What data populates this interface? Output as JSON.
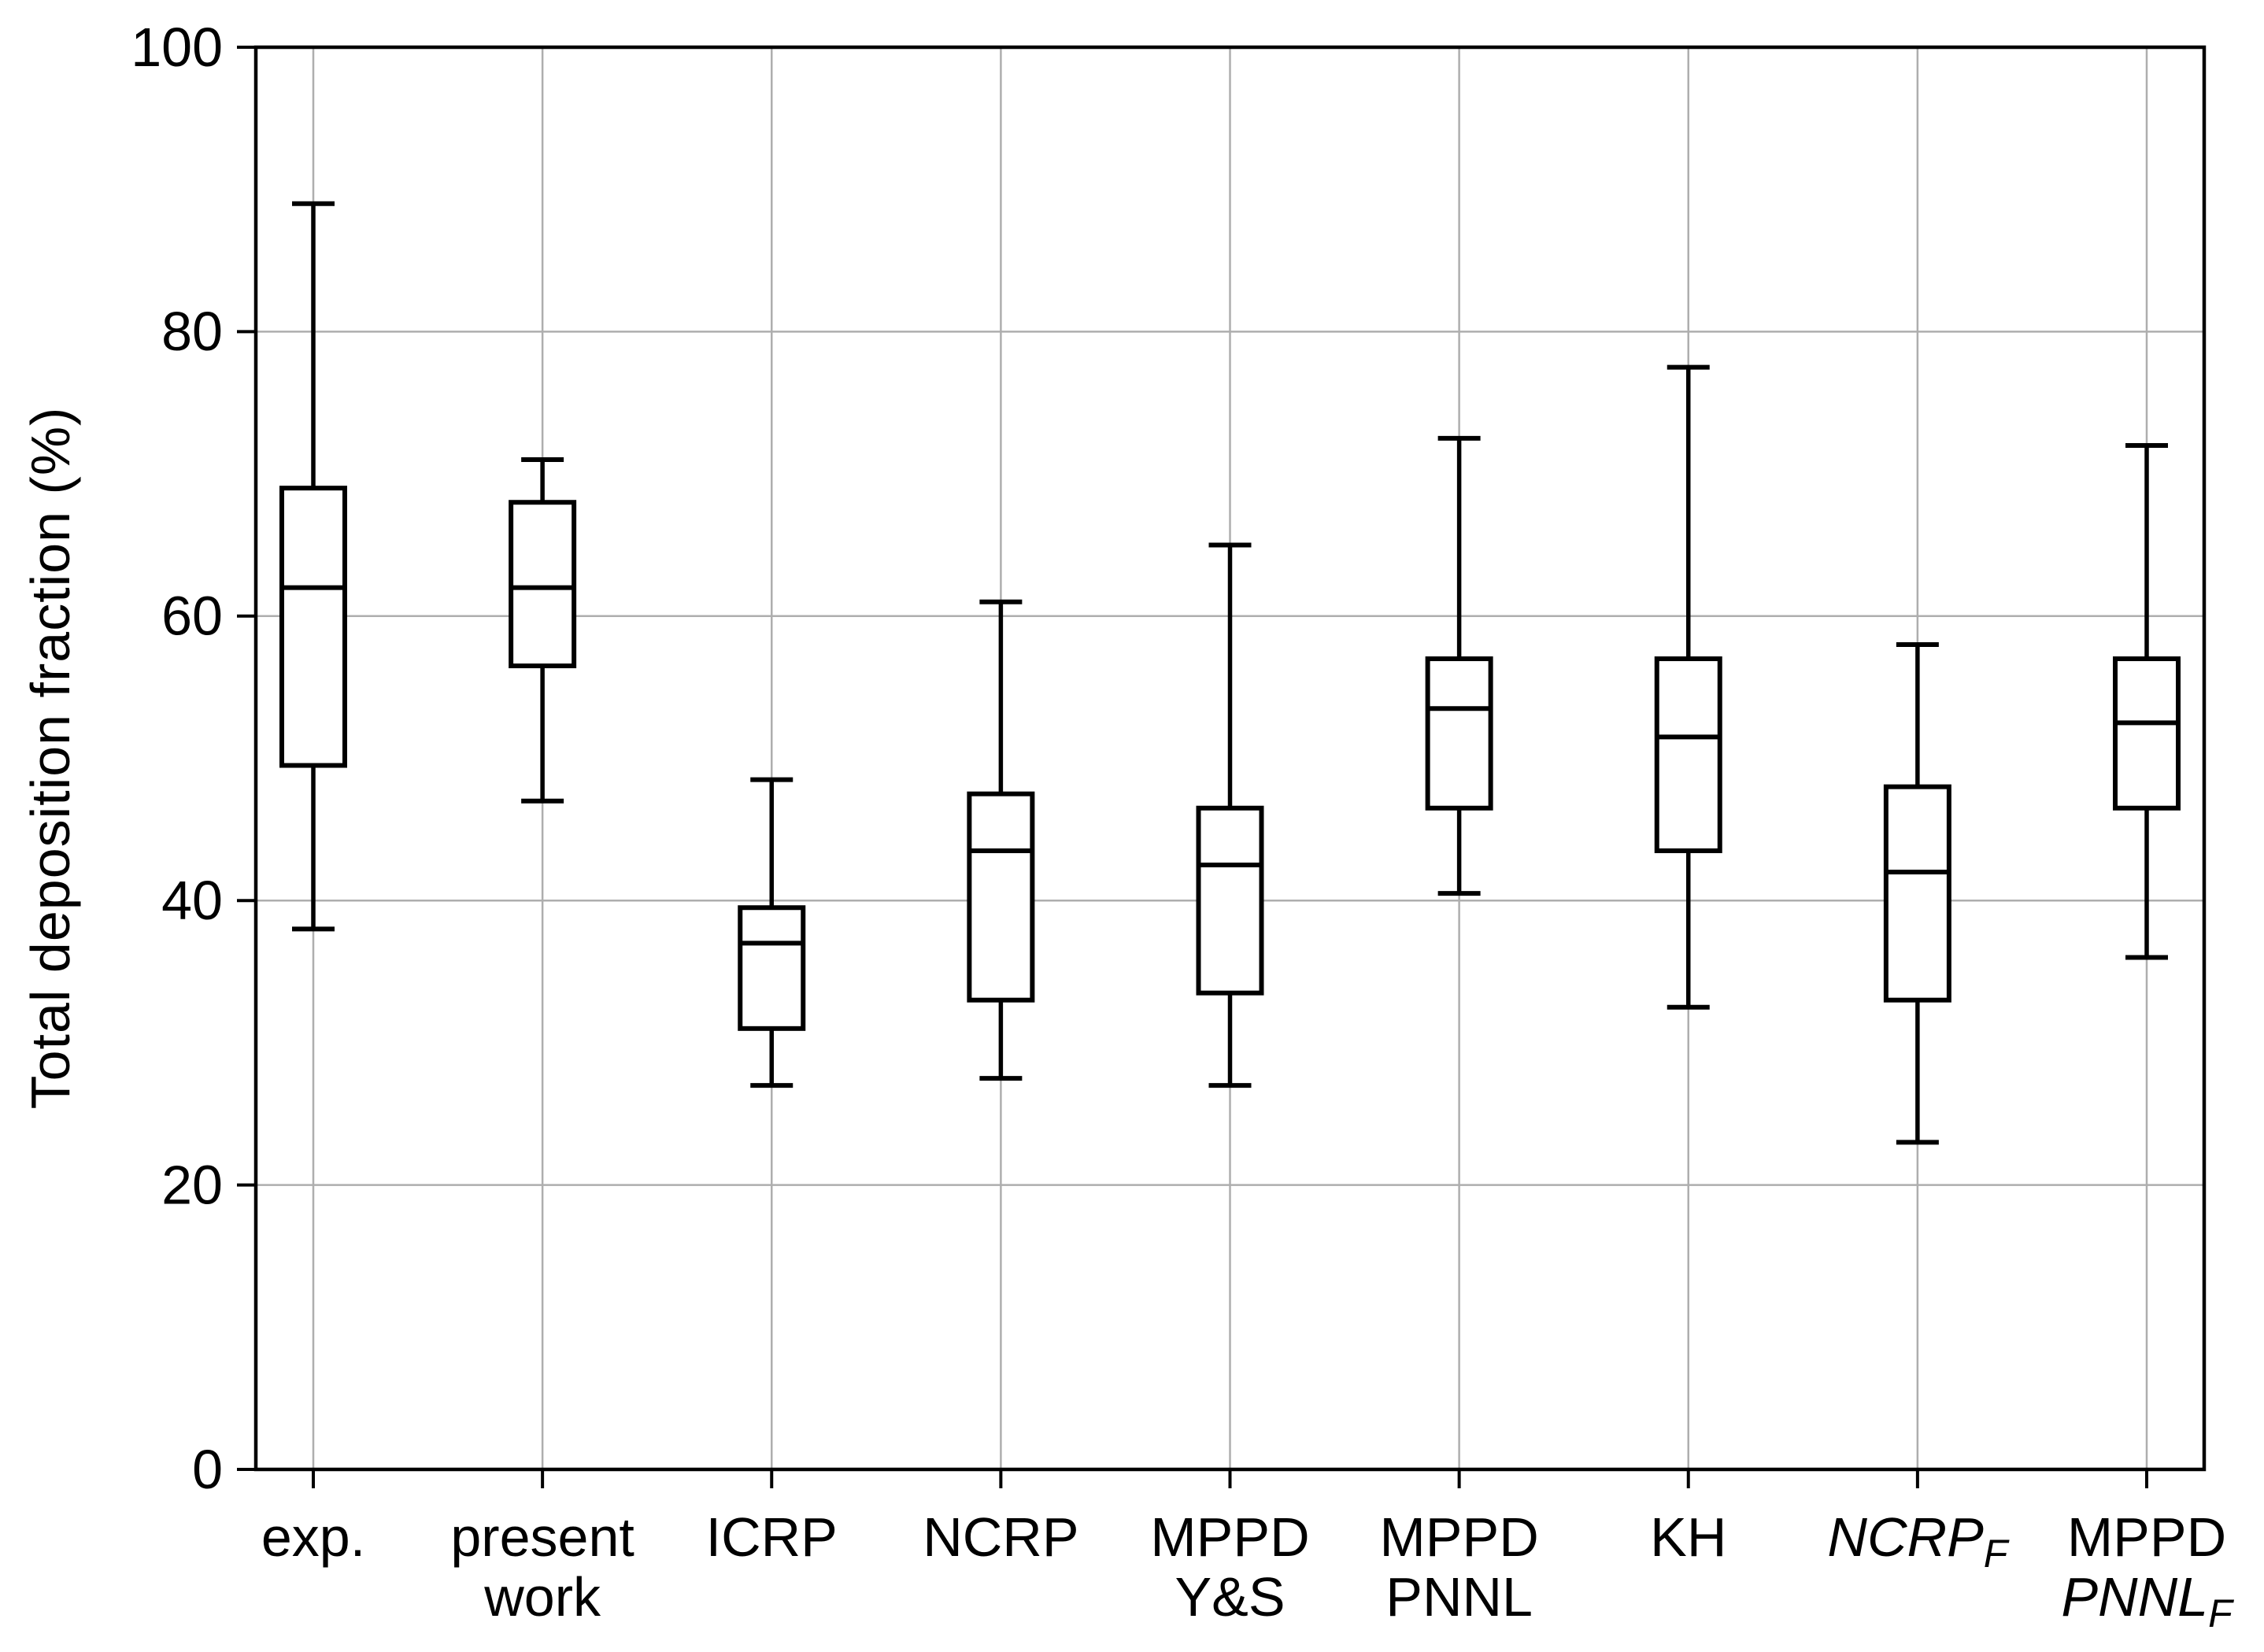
{
  "figure": {
    "background": "#ffffff"
  },
  "colors": {
    "box_stroke": "#000000",
    "axis_stroke": "#000000",
    "grid": "#aeaeae",
    "text": "#000000"
  },
  "chart_data": {
    "type": "box",
    "title": "",
    "xlabel": "",
    "ylabel": "Total deposition fraction (%)",
    "ylim": [
      0,
      100
    ],
    "yticks": [
      0,
      20,
      40,
      60,
      80,
      100
    ],
    "grid": true,
    "legend": "none",
    "orientation": "vertical",
    "categories": [
      {
        "id": "exp",
        "label": "exp.",
        "label_lines": [
          {
            "text": "exp.",
            "italic": false,
            "subscript": ""
          }
        ],
        "whisker_low": 38,
        "q1": 49.5,
        "median": 62,
        "q3": 69,
        "whisker_high": 89
      },
      {
        "id": "present-work",
        "label": "present work",
        "label_lines": [
          {
            "text": "present",
            "italic": false,
            "subscript": ""
          },
          {
            "text": "work",
            "italic": false,
            "subscript": ""
          }
        ],
        "whisker_low": 47,
        "q1": 56.5,
        "median": 62,
        "q3": 68,
        "whisker_high": 71
      },
      {
        "id": "icrp",
        "label": "ICRP",
        "label_lines": [
          {
            "text": "ICRP",
            "italic": false,
            "subscript": ""
          }
        ],
        "whisker_low": 27,
        "q1": 31,
        "median": 37,
        "q3": 39.5,
        "whisker_high": 48.5
      },
      {
        "id": "ncrp",
        "label": "NCRP",
        "label_lines": [
          {
            "text": "NCRP",
            "italic": false,
            "subscript": ""
          }
        ],
        "whisker_low": 27.5,
        "q1": 33,
        "median": 43.5,
        "q3": 47.5,
        "whisker_high": 61
      },
      {
        "id": "mppd-ys",
        "label": "MPPD Y&S",
        "label_lines": [
          {
            "text": "MPPD",
            "italic": false,
            "subscript": ""
          },
          {
            "text": "Y&S",
            "italic": false,
            "subscript": ""
          }
        ],
        "whisker_low": 27,
        "q1": 33.5,
        "median": 42.5,
        "q3": 46.5,
        "whisker_high": 65
      },
      {
        "id": "mppd-pnnl",
        "label": "MPPD PNNL",
        "label_lines": [
          {
            "text": "MPPD",
            "italic": false,
            "subscript": ""
          },
          {
            "text": "PNNL",
            "italic": false,
            "subscript": ""
          }
        ],
        "whisker_low": 40.5,
        "q1": 46.5,
        "median": 53.5,
        "q3": 57,
        "whisker_high": 72.5
      },
      {
        "id": "kh",
        "label": "KH",
        "label_lines": [
          {
            "text": "KH",
            "italic": false,
            "subscript": ""
          }
        ],
        "whisker_low": 32.5,
        "q1": 43.5,
        "median": 51.5,
        "q3": 57,
        "whisker_high": 77.5
      },
      {
        "id": "ncrp-f",
        "label": "NCRP_F",
        "label_lines": [
          {
            "text": "NCRP",
            "italic": true,
            "subscript": "F"
          }
        ],
        "whisker_low": 23,
        "q1": 33,
        "median": 42,
        "q3": 48,
        "whisker_high": 58
      },
      {
        "id": "mppd-pnnl-f",
        "label": "MPPD PNNL_F",
        "label_lines": [
          {
            "text": "MPPD",
            "italic": false,
            "subscript": ""
          },
          {
            "text": "PNNL",
            "italic": true,
            "subscript": "F"
          }
        ],
        "whisker_low": 36,
        "q1": 46.5,
        "median": 52.5,
        "q3": 57,
        "whisker_high": 72
      }
    ]
  }
}
